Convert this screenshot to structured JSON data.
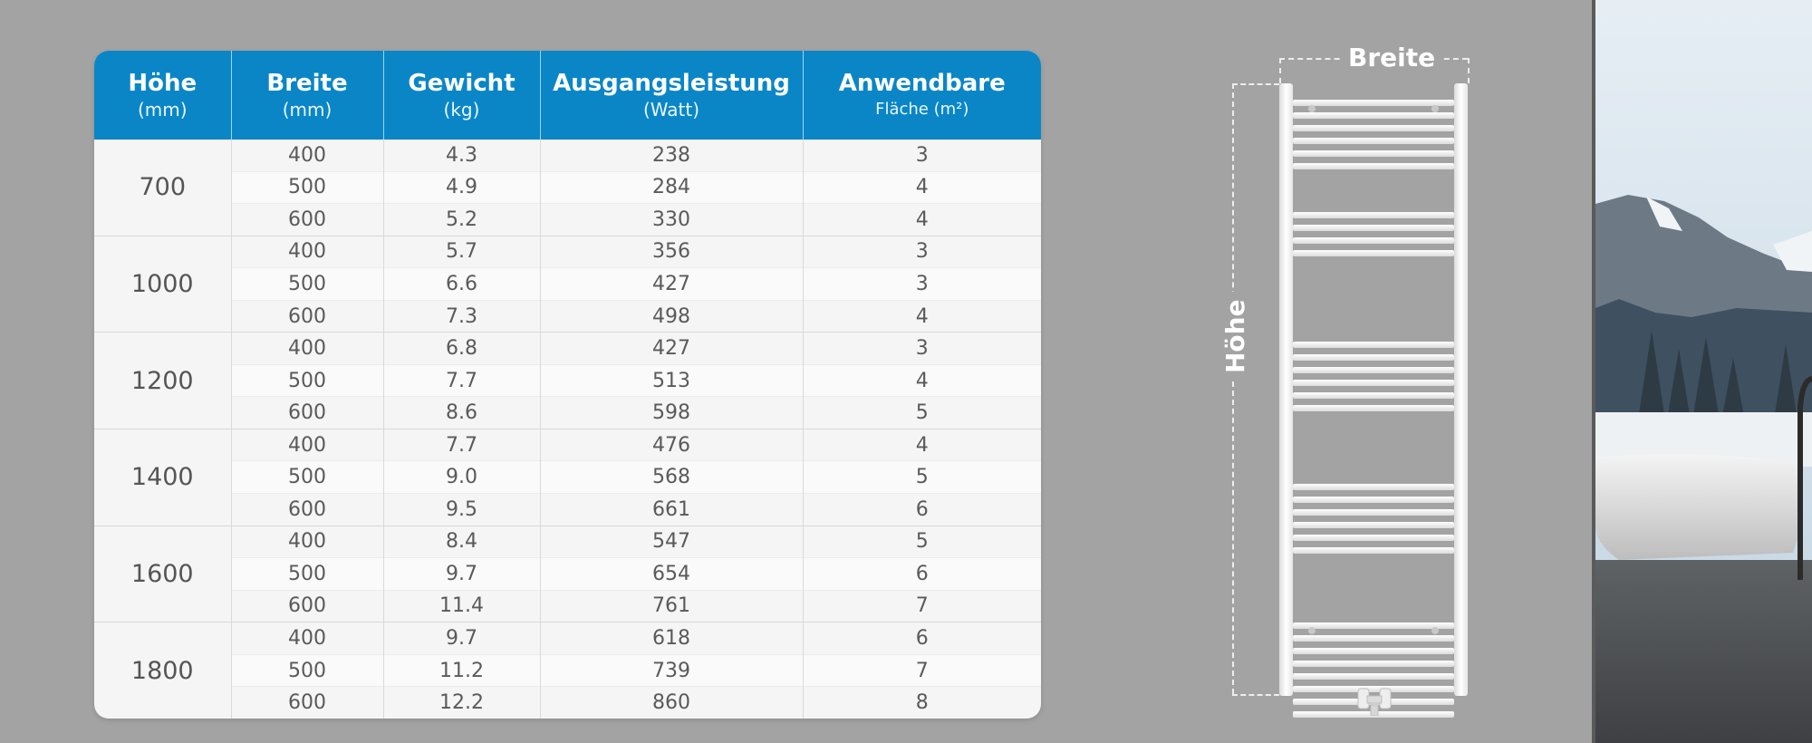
{
  "table": {
    "headers": [
      {
        "label": "Höhe",
        "sub": "(mm)"
      },
      {
        "label": "Breite",
        "sub": "(mm)"
      },
      {
        "label": "Gewicht",
        "sub": "(kg)"
      },
      {
        "label": "Ausgangsleistung",
        "sub": "(Watt)"
      },
      {
        "label": "Anwendbare",
        "sub": "Fläche (m²)"
      }
    ],
    "groups": [
      {
        "hoehe": "700",
        "rows": [
          {
            "breite": "400",
            "gewicht": "4.3",
            "leistung": "238",
            "flaeche": "3"
          },
          {
            "breite": "500",
            "gewicht": "4.9",
            "leistung": "284",
            "flaeche": "4"
          },
          {
            "breite": "600",
            "gewicht": "5.2",
            "leistung": "330",
            "flaeche": "4"
          }
        ]
      },
      {
        "hoehe": "1000",
        "rows": [
          {
            "breite": "400",
            "gewicht": "5.7",
            "leistung": "356",
            "flaeche": "3"
          },
          {
            "breite": "500",
            "gewicht": "6.6",
            "leistung": "427",
            "flaeche": "3"
          },
          {
            "breite": "600",
            "gewicht": "7.3",
            "leistung": "498",
            "flaeche": "4"
          }
        ]
      },
      {
        "hoehe": "1200",
        "rows": [
          {
            "breite": "400",
            "gewicht": "6.8",
            "leistung": "427",
            "flaeche": "3"
          },
          {
            "breite": "500",
            "gewicht": "7.7",
            "leistung": "513",
            "flaeche": "4"
          },
          {
            "breite": "600",
            "gewicht": "8.6",
            "leistung": "598",
            "flaeche": "5"
          }
        ]
      },
      {
        "hoehe": "1400",
        "rows": [
          {
            "breite": "400",
            "gewicht": "7.7",
            "leistung": "476",
            "flaeche": "4"
          },
          {
            "breite": "500",
            "gewicht": "9.0",
            "leistung": "568",
            "flaeche": "5"
          },
          {
            "breite": "600",
            "gewicht": "9.5",
            "leistung": "661",
            "flaeche": "6"
          }
        ]
      },
      {
        "hoehe": "1600",
        "rows": [
          {
            "breite": "400",
            "gewicht": "8.4",
            "leistung": "547",
            "flaeche": "5"
          },
          {
            "breite": "500",
            "gewicht": "9.7",
            "leistung": "654",
            "flaeche": "6"
          },
          {
            "breite": "600",
            "gewicht": "11.4",
            "leistung": "761",
            "flaeche": "7"
          }
        ]
      },
      {
        "hoehe": "1800",
        "rows": [
          {
            "breite": "400",
            "gewicht": "9.7",
            "leistung": "618",
            "flaeche": "6"
          },
          {
            "breite": "500",
            "gewicht": "11.2",
            "leistung": "739",
            "flaeche": "7"
          },
          {
            "breite": "600",
            "gewicht": "12.2",
            "leistung": "860",
            "flaeche": "8"
          }
        ]
      }
    ]
  },
  "diagram": {
    "width_label": "Breite",
    "height_label": "Höhe"
  },
  "colors": {
    "header_blue": "#0a86c7",
    "background_gray": "#a3a3a3"
  }
}
